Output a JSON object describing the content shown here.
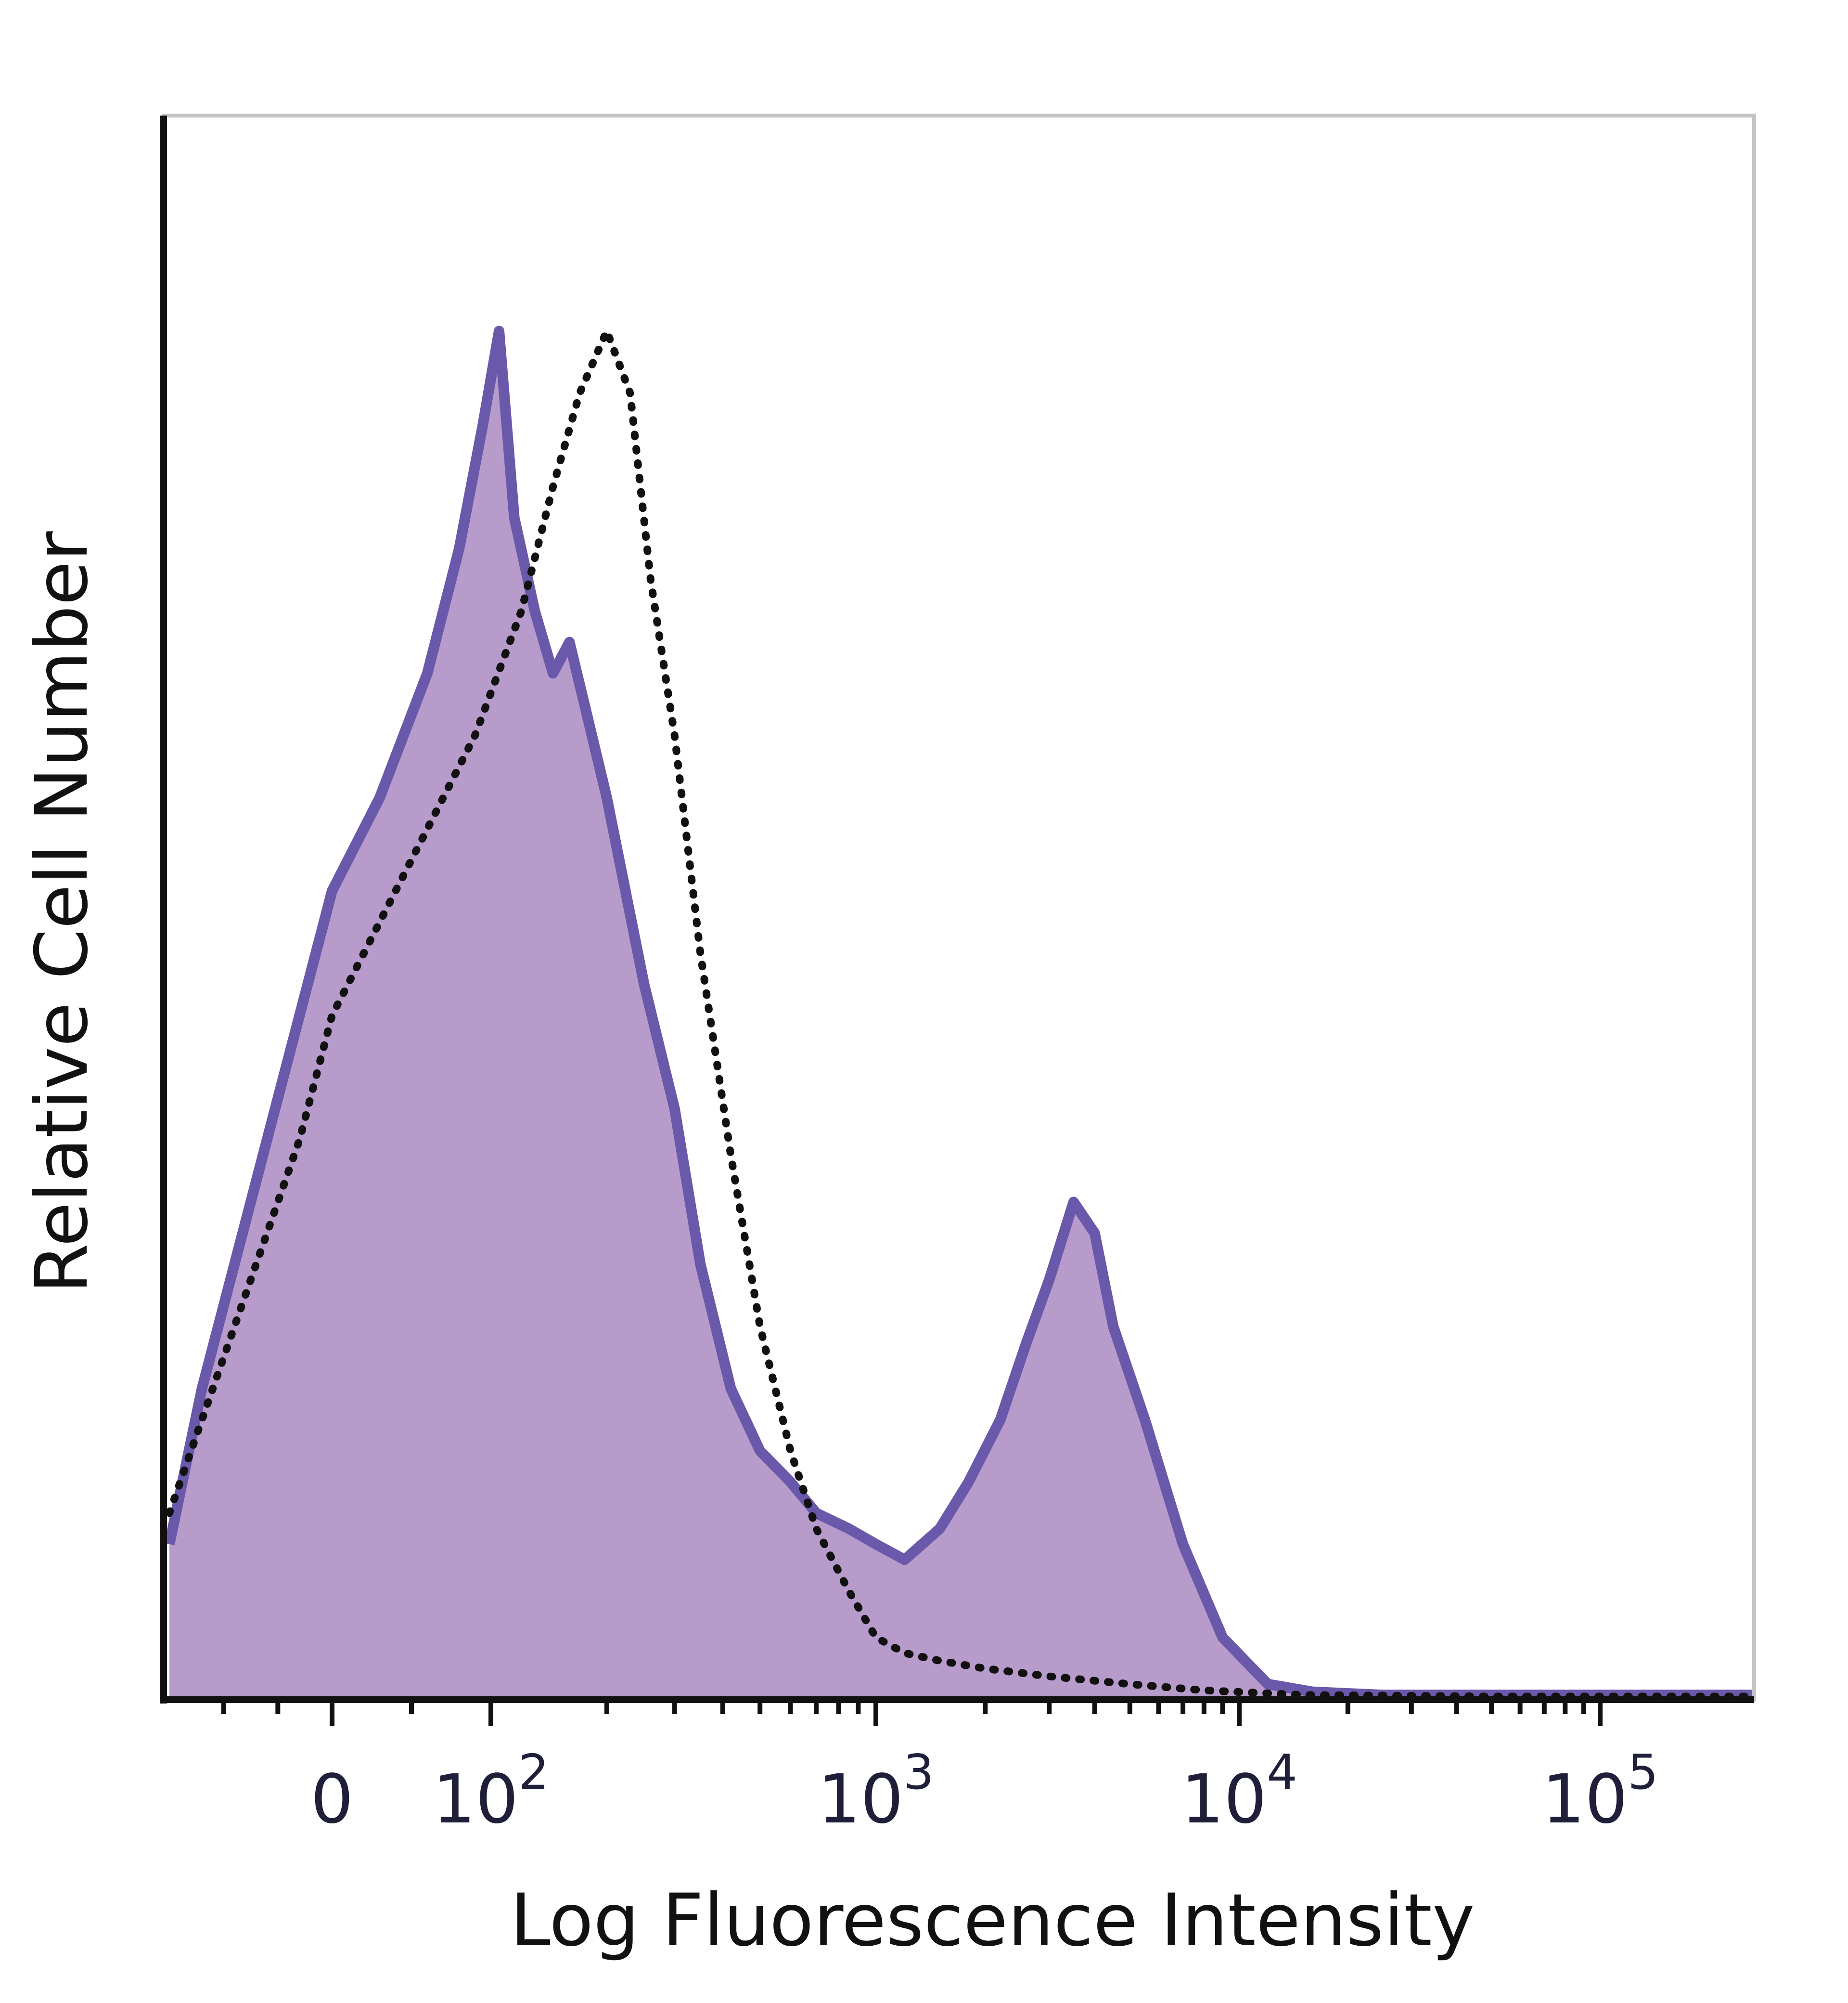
{
  "chart_data": {
    "type": "area",
    "title": "",
    "xlabel": "Log Fluorescence Intensity",
    "ylabel": "Relative Cell Number",
    "x_scale": "biexponential (linear around 0, log above 10^2)",
    "xlim": [
      -150,
      250000
    ],
    "ylim": [
      0,
      100
    ],
    "x_ticks": [
      {
        "value": 0,
        "base": "0",
        "exp": ""
      },
      {
        "value": 100,
        "base": "10",
        "exp": "2"
      },
      {
        "value": 1000,
        "base": "10",
        "exp": "3"
      },
      {
        "value": 10000,
        "base": "10",
        "exp": "4"
      },
      {
        "value": 100000,
        "base": "10",
        "exp": "5"
      }
    ],
    "grid": false,
    "legend": "none",
    "series": [
      {
        "style": "filled purple histogram with dark purple outline",
        "fill_color": "#b79ccb",
        "line_color": "#6a58aa",
        "points": [
          [
            -150,
            10
          ],
          [
            -120,
            20
          ],
          [
            -90,
            28
          ],
          [
            -60,
            36
          ],
          [
            -30,
            44
          ],
          [
            0,
            52
          ],
          [
            30,
            58
          ],
          [
            60,
            66
          ],
          [
            80,
            74
          ],
          [
            95,
            82
          ],
          [
            105,
            88
          ],
          [
            115,
            76
          ],
          [
            130,
            70
          ],
          [
            145,
            66
          ],
          [
            160,
            68
          ],
          [
            175,
            64
          ],
          [
            200,
            58
          ],
          [
            250,
            46
          ],
          [
            300,
            38
          ],
          [
            350,
            28
          ],
          [
            420,
            20
          ],
          [
            500,
            16
          ],
          [
            600,
            14
          ],
          [
            700,
            12
          ],
          [
            850,
            11
          ],
          [
            1000,
            10
          ],
          [
            1200,
            9
          ],
          [
            1500,
            11
          ],
          [
            1800,
            14
          ],
          [
            2200,
            18
          ],
          [
            2600,
            23
          ],
          [
            3000,
            27
          ],
          [
            3500,
            32
          ],
          [
            4000,
            30
          ],
          [
            4500,
            24
          ],
          [
            5500,
            18
          ],
          [
            7000,
            10
          ],
          [
            9000,
            4
          ],
          [
            12000,
            1
          ],
          [
            16000,
            0.5
          ],
          [
            25000,
            0.3
          ],
          [
            60000,
            0.3
          ],
          [
            250000,
            0.3
          ]
        ]
      },
      {
        "style": "dotted black line (control)",
        "line_color": "#111111",
        "points": [
          [
            -150,
            12
          ],
          [
            -120,
            18
          ],
          [
            -90,
            24
          ],
          [
            -60,
            30
          ],
          [
            -30,
            36
          ],
          [
            0,
            44
          ],
          [
            30,
            50
          ],
          [
            60,
            56
          ],
          [
            90,
            62
          ],
          [
            120,
            70
          ],
          [
            145,
            78
          ],
          [
            170,
            84
          ],
          [
            200,
            88
          ],
          [
            230,
            84
          ],
          [
            260,
            72
          ],
          [
            300,
            62
          ],
          [
            350,
            48
          ],
          [
            420,
            35
          ],
          [
            500,
            24
          ],
          [
            600,
            16
          ],
          [
            700,
            11
          ],
          [
            850,
            7
          ],
          [
            1000,
            4
          ],
          [
            1200,
            3
          ],
          [
            1500,
            2.5
          ],
          [
            2000,
            2
          ],
          [
            3000,
            1.5
          ],
          [
            5000,
            1
          ],
          [
            8000,
            0.6
          ],
          [
            15000,
            0.3
          ],
          [
            50000,
            0.2
          ],
          [
            250000,
            0.2
          ]
        ]
      }
    ]
  }
}
